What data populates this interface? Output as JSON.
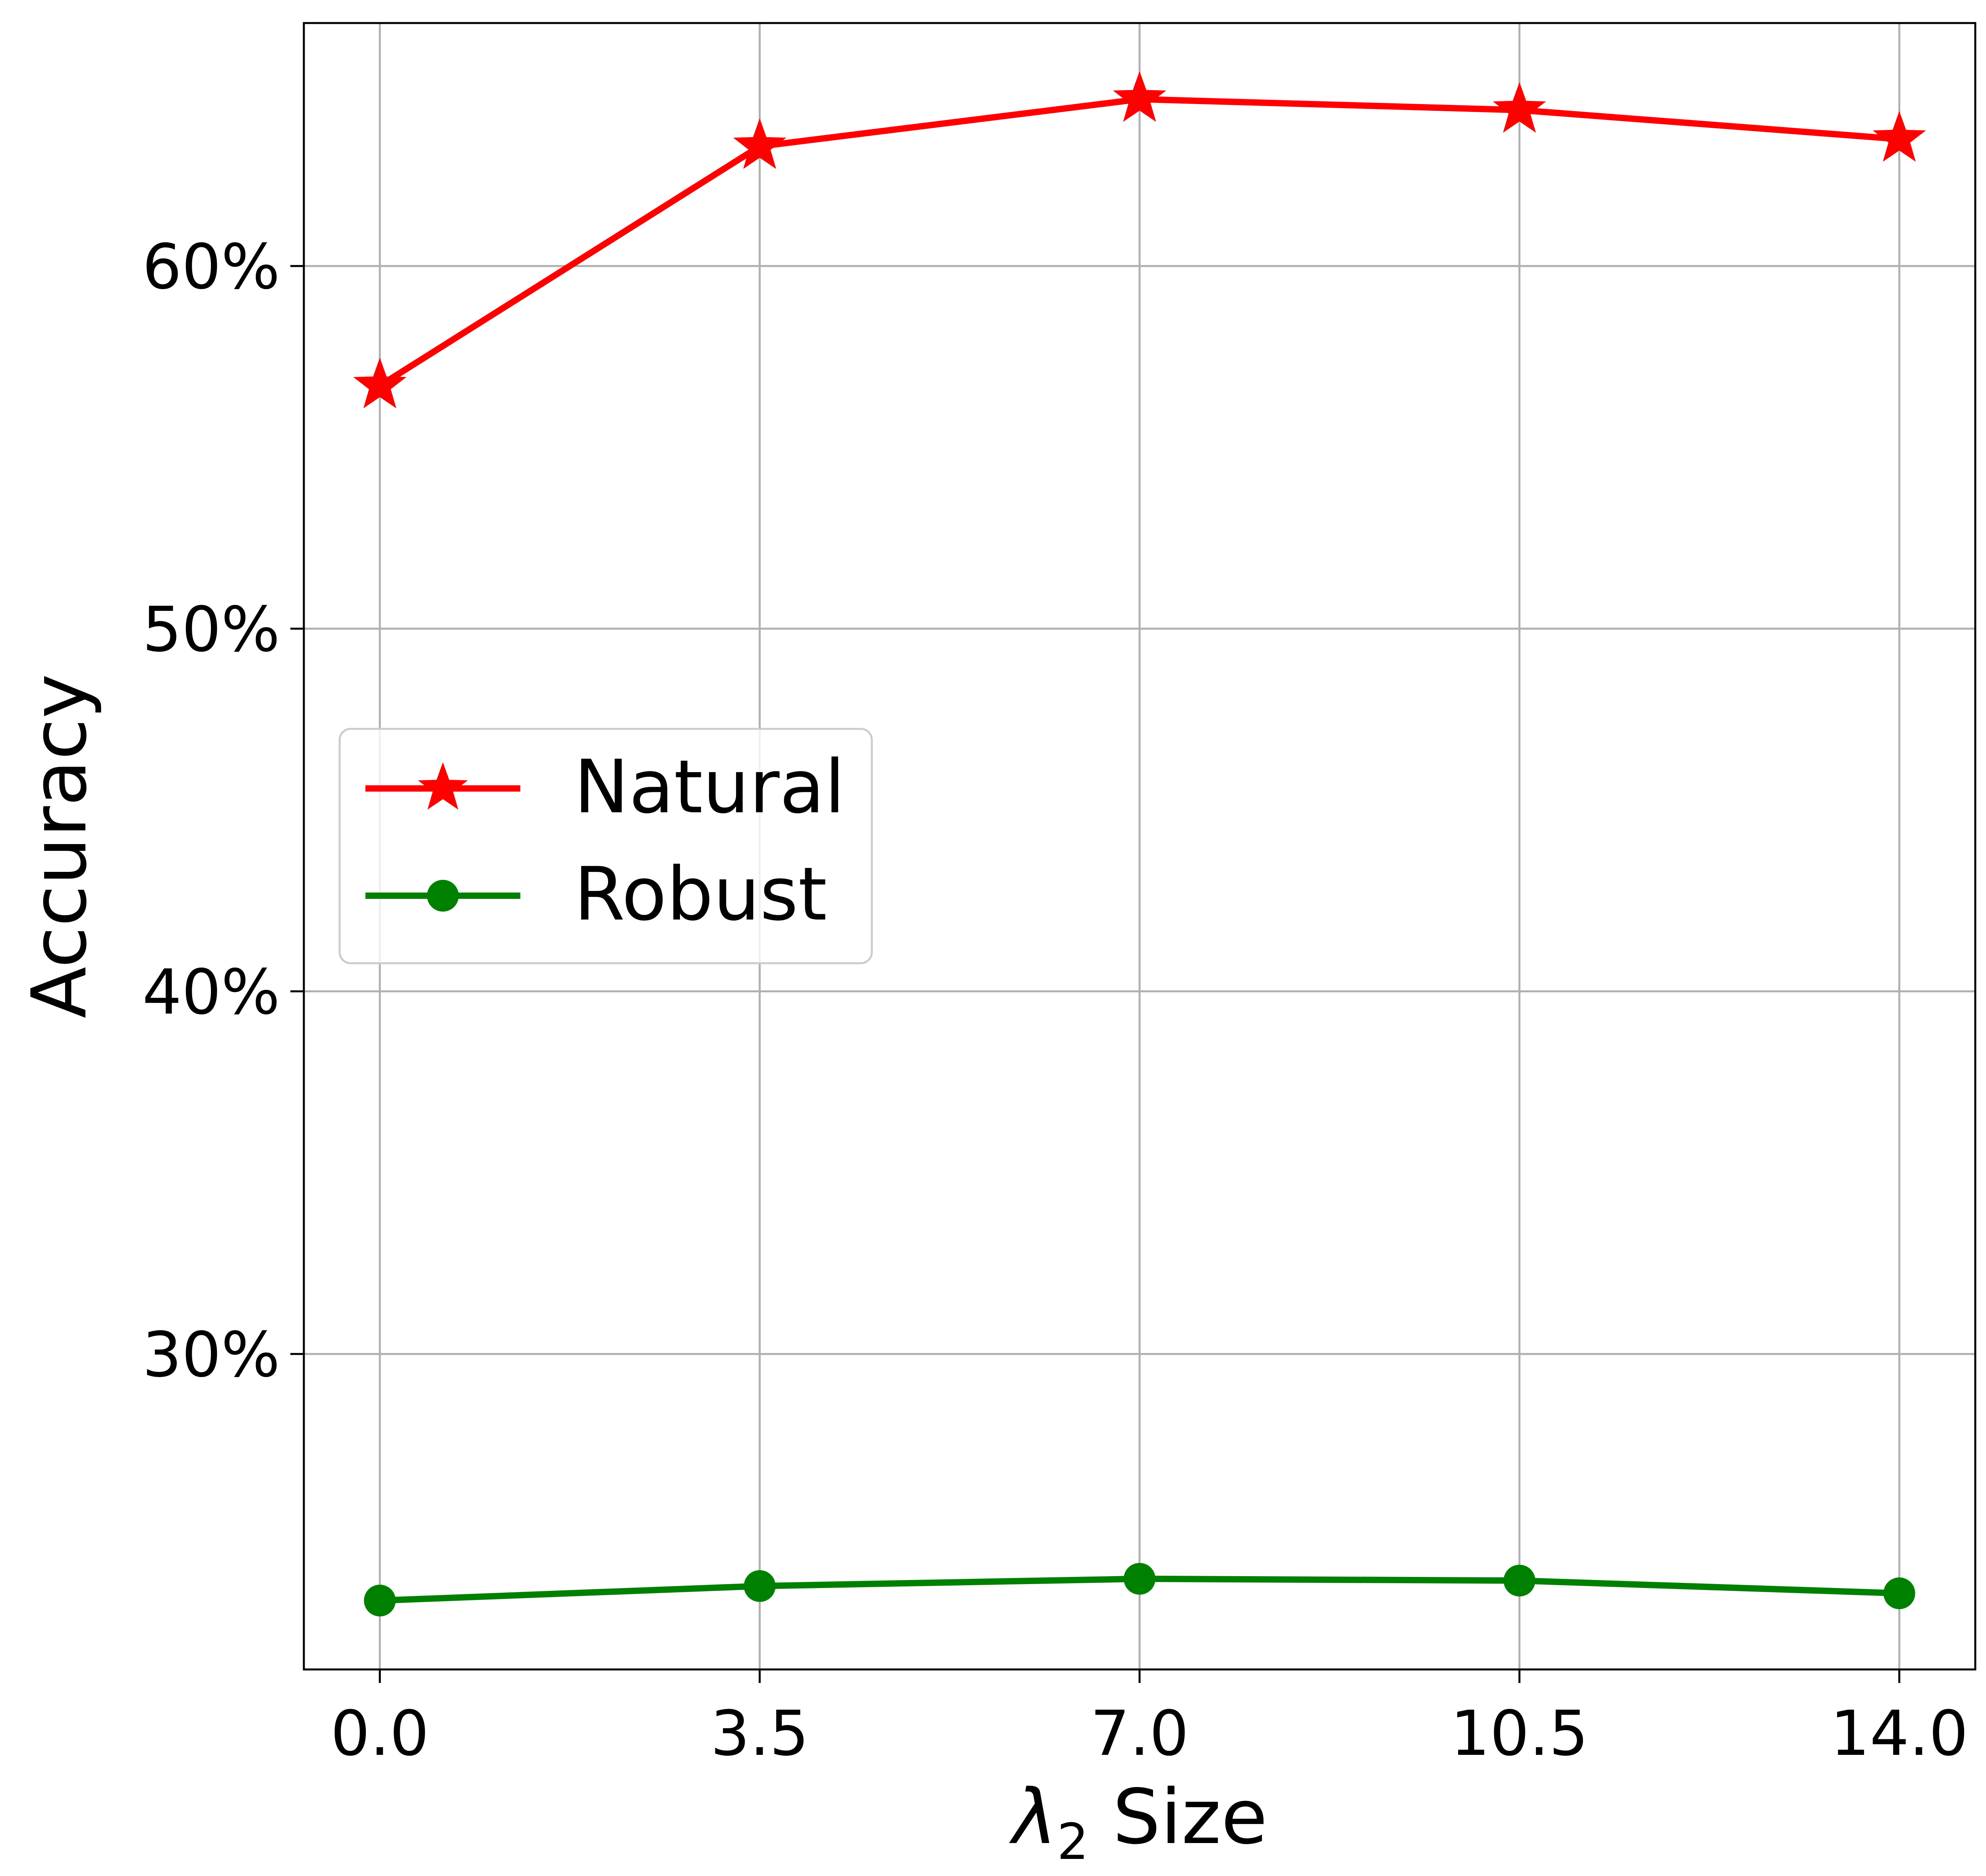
{
  "chart_data": {
    "type": "line",
    "title": "",
    "xlabel": "Size",
    "xlabel_symbol": "λ",
    "xlabel_subscript": "2",
    "ylabel": "Accuracy",
    "x": [
      0.0,
      3.5,
      7.0,
      10.5,
      14.0
    ],
    "x_tick_labels": [
      "0.0",
      "3.5",
      "7.0",
      "10.5",
      "14.0"
    ],
    "xlim": [
      -0.7,
      14.7
    ],
    "y_ticks": [
      30,
      40,
      50,
      60
    ],
    "y_tick_labels": [
      "30%",
      "40%",
      "50%",
      "60%"
    ],
    "ylim": [
      21.3,
      66.7
    ],
    "grid": true,
    "legend_position": "center-left",
    "series": [
      {
        "name": "Natural",
        "color": "#ff0000",
        "marker": "star",
        "values": [
          56.7,
          63.3,
          64.6,
          64.3,
          63.5
        ]
      },
      {
        "name": "Robust",
        "color": "#008000",
        "marker": "circle",
        "values": [
          23.2,
          23.6,
          23.8,
          23.75,
          23.4
        ]
      }
    ]
  }
}
